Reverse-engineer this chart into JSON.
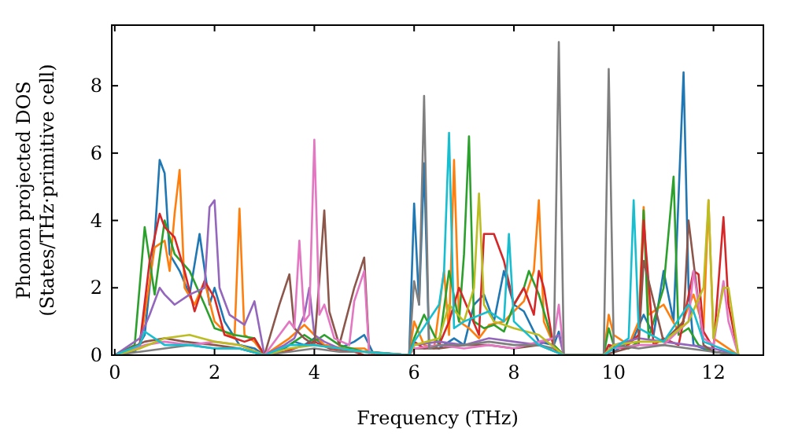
{
  "chart_data": {
    "type": "line",
    "xlabel": "Frequency (THz)",
    "ylabel": "Phonon projected DOS\n(States/THz·primitive cell)",
    "xlim": [
      -0.06,
      13
    ],
    "ylim": [
      0,
      9.8
    ],
    "xticks": [
      0,
      2,
      4,
      6,
      8,
      10,
      12
    ],
    "yticks": [
      0,
      2,
      4,
      6,
      8
    ],
    "grid": false,
    "marker": "none",
    "line_style": "solid",
    "series": [
      {
        "color": "#1f77b4",
        "x": [
          0,
          0.4,
          0.6,
          0.8,
          0.9,
          1.0,
          1.1,
          1.3,
          1.5,
          1.7,
          1.9,
          2.0,
          2.2,
          2.5,
          2.8,
          3.0,
          3.4,
          3.6,
          3.8,
          4.0,
          4.2,
          4.5,
          4.8,
          5.0,
          5.2,
          5.9,
          6.0,
          6.1,
          6.2,
          6.3,
          6.5,
          6.8,
          7.0,
          7.2,
          7.4,
          7.6,
          7.8,
          8.0,
          8.2,
          8.5,
          8.8,
          8.9,
          9.0,
          9.8,
          9.9,
          10.0,
          10.4,
          10.6,
          10.8,
          11.0,
          11.2,
          11.4,
          11.5,
          11.6,
          11.8,
          12.0,
          12.5
        ],
        "values": [
          0,
          0.1,
          0.6,
          3.5,
          5.8,
          5.4,
          3,
          2.5,
          1.8,
          3.6,
          1.5,
          2.0,
          1.0,
          0.3,
          0.2,
          0,
          0.2,
          0.4,
          0.3,
          0.5,
          0.3,
          0.2,
          0.4,
          0.6,
          0,
          0,
          4.5,
          1.5,
          5.7,
          0.3,
          0.2,
          0.5,
          0.3,
          1.5,
          1.8,
          1.0,
          2.5,
          1.5,
          1.3,
          0.4,
          0.3,
          0.7,
          0,
          0,
          0.3,
          0.1,
          0.5,
          1.2,
          0.6,
          2.5,
          1.0,
          8.4,
          2.0,
          0.3,
          0.2,
          0.1,
          0
        ]
      },
      {
        "color": "#ff7f0e",
        "x": [
          0,
          0.5,
          0.8,
          1.0,
          1.1,
          1.2,
          1.3,
          1.4,
          1.6,
          1.8,
          2.0,
          2.2,
          2.4,
          2.5,
          2.6,
          2.8,
          3.0,
          3.5,
          3.8,
          4.0,
          4.2,
          4.6,
          5.0,
          5.2,
          5.9,
          6.0,
          6.2,
          6.4,
          6.6,
          6.7,
          6.8,
          6.9,
          7.1,
          7.3,
          7.5,
          7.8,
          8.0,
          8.2,
          8.4,
          8.5,
          8.6,
          8.8,
          9.0,
          9.8,
          9.9,
          10.0,
          10.3,
          10.5,
          10.6,
          10.7,
          11.0,
          11.3,
          11.6,
          11.8,
          11.9,
          12.0,
          12.5
        ],
        "values": [
          0,
          0.2,
          3.2,
          3.4,
          2.5,
          4.2,
          5.5,
          2.0,
          1.5,
          2.2,
          1.0,
          0.7,
          0.5,
          4.35,
          0.6,
          0.4,
          0,
          0.5,
          0.9,
          0.6,
          0.3,
          0.2,
          0.2,
          0,
          0,
          1.0,
          0.3,
          0.2,
          2.5,
          0.6,
          5.8,
          1.0,
          0.8,
          0.5,
          0.9,
          1.0,
          1.3,
          1.6,
          2.5,
          4.6,
          1.0,
          0.3,
          0,
          0,
          1.2,
          0.6,
          0.3,
          1.0,
          4.4,
          1.2,
          1.5,
          0.7,
          1.8,
          0.8,
          4.6,
          0.5,
          0
        ]
      },
      {
        "color": "#2ca02c",
        "x": [
          0,
          0.4,
          0.6,
          0.8,
          1.0,
          1.2,
          1.5,
          1.8,
          2.0,
          2.4,
          2.8,
          3.0,
          3.5,
          3.8,
          4.0,
          4.2,
          4.5,
          5.0,
          5.9,
          6.0,
          6.2,
          6.5,
          6.7,
          6.9,
          7.0,
          7.1,
          7.2,
          7.4,
          7.6,
          7.8,
          8.0,
          8.2,
          8.3,
          8.5,
          8.8,
          9.0,
          9.8,
          9.9,
          10.0,
          10.3,
          10.5,
          10.6,
          10.7,
          10.9,
          11.0,
          11.2,
          11.3,
          11.5,
          11.7,
          12.0,
          12.5
        ],
        "values": [
          0,
          0.3,
          3.8,
          1.8,
          4.0,
          3.0,
          2.5,
          1.5,
          0.8,
          0.6,
          0.5,
          0,
          0.3,
          0.6,
          0.4,
          0.6,
          0.3,
          0.1,
          0,
          0.5,
          1.2,
          0.3,
          2.5,
          1.0,
          3.0,
          6.5,
          1.0,
          0.8,
          0.9,
          0.7,
          1.5,
          2.0,
          2.5,
          1.8,
          0.3,
          0,
          0,
          0.8,
          0.3,
          0.2,
          0.4,
          4.3,
          0.5,
          1.5,
          2.0,
          5.3,
          0.6,
          0.8,
          0.3,
          0.1,
          0
        ]
      },
      {
        "color": "#d62728",
        "x": [
          0,
          0.5,
          0.7,
          0.9,
          1.0,
          1.2,
          1.4,
          1.6,
          1.8,
          2.0,
          2.2,
          2.4,
          2.6,
          2.8,
          3.0,
          3.4,
          3.8,
          4.0,
          4.3,
          4.8,
          5.0,
          5.9,
          6.0,
          6.2,
          6.5,
          6.7,
          6.9,
          7.1,
          7.3,
          7.4,
          7.6,
          7.8,
          8.0,
          8.2,
          8.4,
          8.5,
          8.6,
          8.8,
          9.0,
          9.8,
          9.9,
          10.2,
          10.5,
          10.6,
          10.8,
          11.0,
          11.3,
          11.6,
          11.7,
          11.8,
          12.0,
          12.2,
          12.3,
          12.5
        ],
        "values": [
          0,
          0.3,
          2.8,
          4.2,
          3.8,
          3.5,
          2.5,
          1.3,
          2.2,
          1.7,
          0.6,
          0.5,
          0.4,
          0.5,
          0,
          0.1,
          0.3,
          0.4,
          0.2,
          0.1,
          0,
          0,
          0.4,
          0.2,
          0.3,
          1.0,
          2.0,
          1.3,
          0.6,
          3.6,
          3.6,
          2.8,
          1.5,
          2.0,
          1.2,
          2.5,
          2.0,
          0.2,
          0,
          0,
          0.3,
          0.2,
          0.6,
          4.0,
          0.3,
          0.5,
          0.3,
          2.5,
          2.4,
          0.7,
          0.2,
          4.1,
          1.5,
          0
        ]
      },
      {
        "color": "#9467bd",
        "x": [
          0,
          0.5,
          0.7,
          0.9,
          1.0,
          1.2,
          1.5,
          1.8,
          1.9,
          2.0,
          2.1,
          2.3,
          2.6,
          2.8,
          3.0,
          3.4,
          3.6,
          3.8,
          3.9,
          4.0,
          4.2,
          4.5,
          5.0,
          5.9,
          6.0,
          6.5,
          7.0,
          7.5,
          8.0,
          8.5,
          8.9,
          9.0,
          9.8,
          10.0,
          10.5,
          11.0,
          11.5,
          12.0,
          12.5
        ],
        "values": [
          0,
          0.5,
          1.2,
          2.0,
          1.8,
          1.5,
          1.8,
          2.0,
          4.4,
          4.6,
          2.0,
          1.2,
          0.9,
          1.6,
          0,
          0.3,
          0.5,
          1.2,
          2.0,
          0.6,
          0.4,
          0.2,
          0.1,
          0,
          0.3,
          0.4,
          0.3,
          0.5,
          0.4,
          0.3,
          0.6,
          0,
          0,
          0.3,
          0.5,
          0.4,
          0.3,
          0.2,
          0
        ]
      },
      {
        "color": "#8c564b",
        "x": [
          0,
          0.6,
          1.0,
          1.4,
          2.0,
          2.5,
          3.0,
          3.3,
          3.5,
          3.6,
          3.8,
          4.0,
          4.1,
          4.2,
          4.3,
          4.5,
          4.8,
          5.0,
          5.1,
          5.9,
          6.0,
          6.5,
          7.0,
          7.5,
          8.0,
          8.5,
          9.0,
          9.8,
          10.5,
          10.6,
          11.0,
          11.4,
          11.5,
          11.8,
          12.0,
          12.5
        ],
        "values": [
          0,
          0.4,
          0.5,
          0.4,
          0.3,
          0.2,
          0,
          1.5,
          2.4,
          0.8,
          0.5,
          0.3,
          2.2,
          4.3,
          1.3,
          0.3,
          2.0,
          2.9,
          0.1,
          0,
          0.2,
          0.2,
          0.3,
          0.3,
          0.2,
          0.3,
          0,
          0,
          0.3,
          2.8,
          0.4,
          1.0,
          4.0,
          0.3,
          0.1,
          0
        ]
      },
      {
        "color": "#e377c2",
        "x": [
          0,
          0.6,
          1.0,
          1.5,
          2.0,
          2.5,
          3.0,
          3.3,
          3.5,
          3.6,
          3.7,
          3.8,
          3.9,
          4.0,
          4.1,
          4.2,
          4.4,
          4.7,
          4.8,
          5.0,
          5.1,
          5.9,
          6.0,
          6.5,
          7.0,
          7.5,
          8.0,
          8.5,
          8.8,
          8.9,
          9.0,
          9.8,
          10.0,
          10.5,
          11.0,
          11.5,
          11.6,
          11.8,
          12.0,
          12.2,
          12.3,
          12.5
        ],
        "values": [
          0,
          0.3,
          0.4,
          0.3,
          0.4,
          0.3,
          0,
          0.6,
          1.0,
          0.8,
          3.4,
          1.0,
          1.2,
          6.4,
          1.2,
          1.5,
          0.5,
          0.3,
          1.6,
          2.5,
          0,
          0,
          0.2,
          0.3,
          0.2,
          0.3,
          0.2,
          0.4,
          0.5,
          1.5,
          0,
          0,
          0.2,
          0.3,
          0.3,
          1.0,
          2.5,
          0.5,
          0.3,
          2.2,
          1.0,
          0
        ]
      },
      {
        "color": "#7f7f7f",
        "x": [
          0,
          0.5,
          1.0,
          1.5,
          2.0,
          2.5,
          3.0,
          3.5,
          4.0,
          4.5,
          5.0,
          5.9,
          6.0,
          6.1,
          6.2,
          6.3,
          6.5,
          7.0,
          7.5,
          8.0,
          8.5,
          8.8,
          8.9,
          9.0,
          9.8,
          9.9,
          10.0,
          10.5,
          11.0,
          11.5,
          12.0,
          12.5
        ],
        "values": [
          0,
          0.1,
          0.2,
          0.3,
          0.2,
          0.2,
          0,
          0.1,
          0.2,
          0.1,
          0.1,
          0,
          2.2,
          1.5,
          7.7,
          0.2,
          0.3,
          0.3,
          0.4,
          0.3,
          0.3,
          0.2,
          9.3,
          0,
          0,
          8.5,
          0.3,
          0.2,
          0.3,
          0.2,
          0.1,
          0
        ]
      },
      {
        "color": "#bcbd22",
        "x": [
          0,
          0.5,
          1.0,
          1.5,
          2.0,
          2.5,
          3.0,
          3.5,
          4.0,
          4.5,
          5.0,
          5.9,
          6.0,
          6.5,
          6.7,
          7.0,
          7.2,
          7.3,
          7.4,
          7.6,
          8.0,
          8.5,
          9.0,
          9.8,
          10.0,
          10.5,
          11.0,
          11.5,
          11.8,
          11.9,
          12.0,
          12.2,
          12.3,
          12.5
        ],
        "values": [
          0,
          0.2,
          0.5,
          0.6,
          0.4,
          0.3,
          0,
          0.2,
          0.3,
          0.2,
          0.1,
          0,
          0.3,
          0.5,
          1.5,
          1.0,
          2.0,
          4.8,
          1.5,
          1.0,
          0.8,
          0.6,
          0,
          0,
          0.3,
          0.4,
          0.4,
          1.0,
          2.0,
          4.6,
          0.5,
          2.0,
          2.0,
          0
        ]
      },
      {
        "color": "#17becf",
        "x": [
          0,
          0.5,
          0.6,
          1.0,
          1.5,
          2.0,
          2.5,
          3.0,
          3.5,
          4.0,
          4.5,
          5.0,
          5.9,
          6.0,
          6.5,
          6.6,
          6.7,
          6.8,
          7.0,
          7.5,
          7.8,
          7.9,
          8.0,
          8.5,
          9.0,
          9.8,
          10.0,
          10.3,
          10.4,
          10.5,
          11.0,
          11.5,
          11.6,
          11.8,
          12.5
        ],
        "values": [
          0,
          0.3,
          0.7,
          0.3,
          0.3,
          0.2,
          0.2,
          0,
          0.3,
          0.3,
          0.2,
          0.1,
          0,
          0.4,
          1.5,
          2.5,
          6.6,
          0.8,
          1.0,
          1.3,
          1.0,
          3.6,
          1.0,
          0.3,
          0,
          0,
          0.2,
          0.5,
          4.6,
          0.8,
          0.4,
          1.5,
          1.3,
          0.4,
          0
        ]
      }
    ]
  }
}
